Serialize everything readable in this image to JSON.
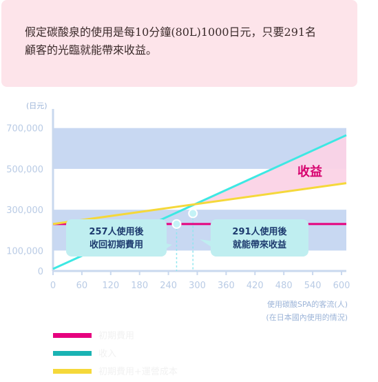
{
  "note": {
    "line1": "假定碳酸泉的使用是每10分鐘(80L)1000日元，只要291名",
    "line2": "顧客的光臨就能帶來收益。"
  },
  "chart_data": {
    "type": "line",
    "title": "",
    "ylabel": "(日元)",
    "xlabel_line1": "使用碳酸SPA的客流(人)",
    "xlabel_line2": "(在日本國內使用的情況)",
    "xlim": [
      0,
      610
    ],
    "ylim": [
      0,
      780000
    ],
    "x_ticks": [
      0,
      60,
      120,
      180,
      240,
      300,
      360,
      420,
      480,
      540,
      600
    ],
    "x_tick_labels": [
      "0",
      "60",
      "120",
      "180",
      "240",
      "300",
      "360",
      "420",
      "480",
      "540",
      "600"
    ],
    "y_ticks": [
      0,
      100000,
      300000,
      500000,
      700000
    ],
    "y_tick_labels": [
      "0",
      "100,000",
      "300,000",
      "500,000",
      "700,000"
    ],
    "bands": [
      [
        100000,
        300000
      ],
      [
        500000,
        700000
      ]
    ],
    "series": [
      {
        "key": "fixed",
        "color": "#e6007e",
        "points": [
          [
            0,
            230000
          ],
          [
            610,
            230000
          ]
        ]
      },
      {
        "key": "revenue",
        "color": "#3de8e3",
        "points": [
          [
            0,
            10000
          ],
          [
            610,
            665000
          ]
        ]
      },
      {
        "key": "cost",
        "color": "#f5d83a",
        "points": [
          [
            0,
            230000
          ],
          [
            610,
            430000
          ]
        ]
      }
    ],
    "profit_label": "收益",
    "annotations": [
      {
        "x": 257,
        "y": 230000,
        "text1": "257人使用後",
        "text2": "收回初期費用"
      },
      {
        "x": 291,
        "y": 282000,
        "text1": "291人使用後",
        "text2": "就能帶來收益"
      }
    ]
  },
  "legend": [
    {
      "color": "#e6007e",
      "label": "初期費用"
    },
    {
      "color": "#1ab3b3",
      "label": "收入"
    },
    {
      "color": "#f5d83a",
      "label": "初期費用+運營成本"
    }
  ]
}
